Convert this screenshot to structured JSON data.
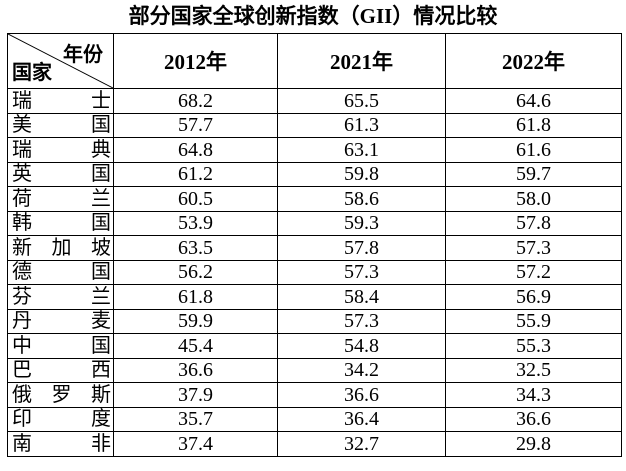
{
  "title": "部分国家全球创新指数（GII）情况比较",
  "header": {
    "corner_year": "年份",
    "corner_country": "国家",
    "columns": [
      "2012年",
      "2021年",
      "2022年"
    ]
  },
  "rows": [
    {
      "country": "瑞士",
      "values": [
        "68.2",
        "65.5",
        "64.6"
      ]
    },
    {
      "country": "美国",
      "values": [
        "57.7",
        "61.3",
        "61.8"
      ]
    },
    {
      "country": "瑞典",
      "values": [
        "64.8",
        "63.1",
        "61.6"
      ]
    },
    {
      "country": "英国",
      "values": [
        "61.2",
        "59.8",
        "59.7"
      ]
    },
    {
      "country": "荷兰",
      "values": [
        "60.5",
        "58.6",
        "58.0"
      ]
    },
    {
      "country": "韩国",
      "values": [
        "53.9",
        "59.3",
        "57.8"
      ]
    },
    {
      "country": "新加坡",
      "values": [
        "63.5",
        "57.8",
        "57.3"
      ]
    },
    {
      "country": "德国",
      "values": [
        "56.2",
        "57.3",
        "57.2"
      ]
    },
    {
      "country": "芬兰",
      "values": [
        "61.8",
        "58.4",
        "56.9"
      ]
    },
    {
      "country": "丹麦",
      "values": [
        "59.9",
        "57.3",
        "55.9"
      ]
    },
    {
      "country": "中国",
      "values": [
        "45.4",
        "54.8",
        "55.3"
      ]
    },
    {
      "country": "巴西",
      "values": [
        "36.6",
        "34.2",
        "32.5"
      ]
    },
    {
      "country": "俄罗斯",
      "values": [
        "37.9",
        "36.6",
        "34.3"
      ]
    },
    {
      "country": "印度",
      "values": [
        "35.7",
        "36.4",
        "36.6"
      ]
    },
    {
      "country": "南非",
      "values": [
        "37.4",
        "32.7",
        "29.8"
      ]
    }
  ]
}
